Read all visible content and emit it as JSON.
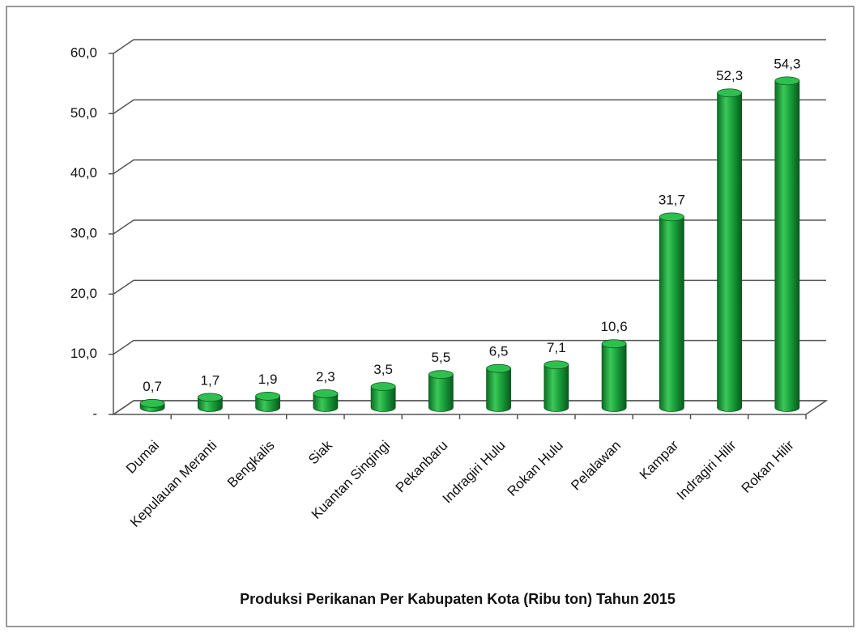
{
  "chart_data": {
    "type": "bar3d",
    "title": "Produksi Perikanan Per Kabupaten Kota (Ribu ton) Tahun 2015",
    "categories": [
      "Dumai",
      "Kepulauan Meranti",
      "Bengkalis",
      "Siak",
      "Kuantan Singingi",
      "Pekanbaru",
      "Indragiri Hulu",
      "Rokan Hulu",
      "Pelalawan",
      "Kampar",
      "Indragiri Hilir",
      "Rokan Hilir"
    ],
    "values": [
      0.7,
      1.7,
      1.9,
      2.3,
      3.5,
      5.5,
      6.5,
      7.1,
      10.6,
      31.7,
      52.3,
      54.3
    ],
    "value_labels": [
      "0,7",
      "1,7",
      "1,9",
      "2,3",
      "3,5",
      "5,5",
      "6,5",
      "7,1",
      "10,6",
      "31,7",
      "52,3",
      "54,3"
    ],
    "color": "#1aa33c",
    "ylim": [
      0,
      60
    ],
    "yticks": [
      {
        "value": 0,
        "label": "-"
      },
      {
        "value": 10,
        "label": "10,0"
      },
      {
        "value": 20,
        "label": "20,0"
      },
      {
        "value": 30,
        "label": "30,0"
      },
      {
        "value": 40,
        "label": "40,0"
      },
      {
        "value": 50,
        "label": "50,0"
      },
      {
        "value": 60,
        "label": "60,0"
      }
    ],
    "grid": true
  }
}
